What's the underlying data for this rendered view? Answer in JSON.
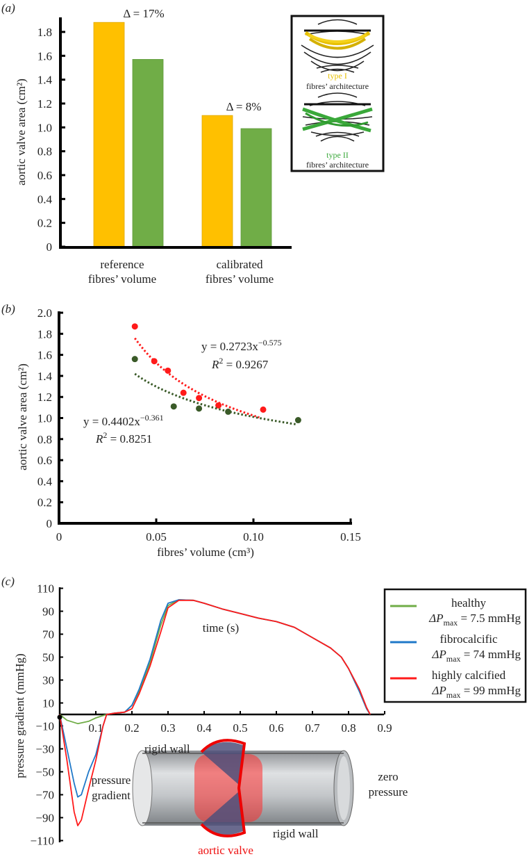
{
  "panel_labels": {
    "a": "(a)",
    "b": "(b)",
    "c": "(c)"
  },
  "inset": {
    "type1": "type I",
    "type1_caption": "fibres’ architecture",
    "type2": "type II",
    "type2_caption": "fibres’ architecture"
  },
  "colors": {
    "type1": "#ffc000",
    "type2": "#70ad47",
    "red": "#ff1a1a",
    "darkgreen": "#3a5a28",
    "blue": "#1f78c8"
  },
  "chart_data": [
    {
      "type": "bar",
      "ylabel": "aortic valve area (cm²)",
      "ylim": [
        0,
        1.9
      ],
      "yticks": [
        "0",
        "0.2",
        "0.4",
        "0.6",
        "0.8",
        "1.0",
        "1.2",
        "1.4",
        "1.6",
        "1.8"
      ],
      "categories": [
        {
          "line1": "reference",
          "line2": "fibres’ volume"
        },
        {
          "line1": "calibrated",
          "line2": "fibres’ volume"
        }
      ],
      "series": [
        {
          "name": "type I fibres’ architecture",
          "values": [
            1.88,
            1.1
          ]
        },
        {
          "name": "type II fibres’ architecture",
          "values": [
            1.57,
            0.99
          ]
        }
      ],
      "annotations": [
        "Δ = 17%",
        "Δ = 8%"
      ]
    },
    {
      "type": "scatter",
      "xlabel": "fibres’ volume (cm³)",
      "ylabel": "aortic valve area (cm²)",
      "xlim": [
        0,
        0.15
      ],
      "ylim": [
        0,
        2.0
      ],
      "xticks": [
        "0",
        "0.05",
        "0.10",
        "0.15"
      ],
      "yticks": [
        "0",
        "0.2",
        "0.4",
        "0.6",
        "0.8",
        "1.0",
        "1.2",
        "1.4",
        "1.6",
        "1.8",
        "2.0"
      ],
      "series": [
        {
          "name": "type I",
          "color": "red",
          "x": [
            0.039,
            0.049,
            0.056,
            0.064,
            0.072,
            0.082,
            0.105
          ],
          "y": [
            1.87,
            1.54,
            1.45,
            1.24,
            1.19,
            1.12,
            1.08
          ],
          "fit": {
            "a": 0.2723,
            "b": -0.575,
            "range": [
              0.039,
              0.103
            ],
            "lhs": "y = 0.2723x",
            "exp": "−0.575",
            "r2_lhs": "R",
            "r2_sup": "2",
            "r2_rhs": " = 0.9267"
          }
        },
        {
          "name": "type II",
          "color": "darkgreen",
          "x": [
            0.039,
            0.059,
            0.072,
            0.087,
            0.123
          ],
          "y": [
            1.56,
            1.11,
            1.09,
            1.06,
            0.98
          ],
          "fit": {
            "a": 0.4402,
            "b": -0.361,
            "range": [
              0.039,
              0.122
            ],
            "lhs": "y = 0.4402x",
            "exp": "−0.361",
            "r2_lhs": "R",
            "r2_sup": "2",
            "r2_rhs": " = 0.8251"
          }
        }
      ]
    },
    {
      "type": "line",
      "xlabel": "time (s)",
      "ylabel": "pressure gradient (mmHg)",
      "xlim": [
        0,
        0.9
      ],
      "ylim": [
        -110,
        110
      ],
      "xticks": [
        "0.1",
        "0.2",
        "0.3",
        "0.4",
        "0.5",
        "0.6",
        "0.7",
        "0.8",
        "0.9"
      ],
      "yticks": [
        "110",
        "90",
        "70",
        "50",
        "30",
        "10",
        "−10",
        "−30",
        "−50",
        "−70",
        "−90",
        "−110"
      ],
      "legend_position": "top-right",
      "series": [
        {
          "name": "healthy",
          "dp_label": "ΔP",
          "dp_sub": "max",
          "dp_value": " = 7.5 mmHg",
          "color": "#70ad47",
          "x": [
            0,
            0.02,
            0.05,
            0.08,
            0.1,
            0.13,
            0.15,
            0.18,
            0.2,
            0.22,
            0.25,
            0.28,
            0.3,
            0.33,
            0.37,
            0.4,
            0.45,
            0.5,
            0.55,
            0.6,
            0.65,
            0.7,
            0.75,
            0.78,
            0.8,
            0.83,
            0.85,
            0.86
          ],
          "y": [
            0,
            -5,
            -8,
            -6,
            -3,
            0,
            1,
            2,
            8,
            20,
            45,
            78,
            95,
            100,
            99.5,
            97,
            92,
            88,
            84,
            81,
            76,
            67,
            58,
            50,
            40,
            20,
            5,
            0
          ]
        },
        {
          "name": "fibrocalcific",
          "dp_label": "ΔP",
          "dp_sub": "max",
          "dp_value": " = 74 mmHg",
          "color": "#1f78c8",
          "x": [
            0,
            0.02,
            0.04,
            0.05,
            0.06,
            0.08,
            0.1,
            0.12,
            0.13,
            0.15,
            0.18,
            0.2,
            0.22,
            0.25,
            0.28,
            0.3,
            0.33,
            0.37,
            0.4,
            0.45,
            0.5,
            0.55,
            0.6,
            0.65,
            0.7,
            0.75,
            0.78,
            0.8,
            0.83,
            0.85,
            0.86
          ],
          "y": [
            0,
            -30,
            -60,
            -72,
            -70,
            -50,
            -35,
            -10,
            0,
            1,
            2,
            8,
            22,
            48,
            82,
            97,
            100,
            99.5,
            97,
            92,
            88,
            84,
            81,
            76,
            67,
            58,
            50,
            40,
            20,
            5,
            0
          ]
        },
        {
          "name": "highly calcified",
          "dp_label": "ΔP",
          "dp_sub": "max",
          "dp_value": " = 99 mmHg",
          "color": "#ff1a1a",
          "x": [
            0,
            0.02,
            0.04,
            0.05,
            0.06,
            0.08,
            0.1,
            0.12,
            0.13,
            0.15,
            0.18,
            0.2,
            0.22,
            0.25,
            0.28,
            0.3,
            0.33,
            0.37,
            0.4,
            0.45,
            0.5,
            0.55,
            0.6,
            0.65,
            0.7,
            0.75,
            0.78,
            0.8,
            0.83,
            0.85,
            0.86
          ],
          "y": [
            0,
            -40,
            -85,
            -97,
            -92,
            -65,
            -40,
            -10,
            0,
            1,
            2,
            5,
            18,
            42,
            72,
            93,
            99.5,
            99.5,
            97,
            92,
            88,
            84,
            81,
            76,
            67,
            58,
            50,
            40,
            22,
            6,
            0
          ]
        }
      ],
      "illustration": {
        "rigid_wall_top": "rigid wall",
        "rigid_wall_bottom": "rigid wall",
        "pressure_line1": "pressure",
        "pressure_line2": "gradient",
        "zero_line1": "zero",
        "zero_line2": "pressure",
        "valve": "aortic valve"
      }
    }
  ]
}
